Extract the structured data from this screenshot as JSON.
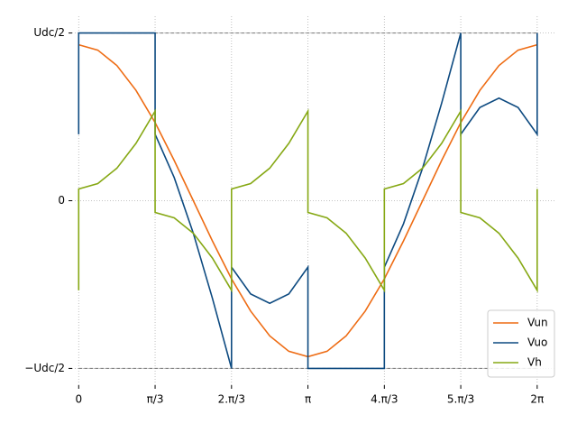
{
  "chart_data": {
    "type": "line",
    "x": [
      0,
      0,
      0.2618,
      0.5236,
      0.7854,
      1.0472,
      1.0472,
      1.309,
      1.5708,
      1.8326,
      2.0944,
      2.0944,
      2.3562,
      2.618,
      2.8798,
      3.1416,
      3.1416,
      3.4034,
      3.6652,
      3.927,
      4.1888,
      4.1888,
      4.4506,
      4.7124,
      4.9742,
      5.236,
      5.236,
      5.4978,
      5.7596,
      6.0214,
      6.2832,
      6.2832
    ],
    "series": [
      {
        "name": "Vun",
        "color": "#ee6c14",
        "values": [
          0.465,
          0.465,
          0.449,
          0.403,
          0.329,
          0.233,
          0.233,
          0.12,
          0,
          -0.12,
          -0.233,
          -0.233,
          -0.329,
          -0.403,
          -0.449,
          -0.465,
          -0.465,
          -0.449,
          -0.403,
          -0.329,
          -0.233,
          -0.233,
          -0.12,
          0,
          0.12,
          0.233,
          0.233,
          0.329,
          0.403,
          0.449,
          0.465,
          0.465
        ]
      },
      {
        "name": "Vuo",
        "color": "#0d4a80",
        "values": [
          0.198,
          0.5,
          0.5,
          0.5,
          0.5,
          0.5,
          0.198,
          0.069,
          -0.097,
          -0.291,
          -0.5,
          -0.198,
          -0.278,
          -0.306,
          -0.278,
          -0.198,
          -0.5,
          -0.5,
          -0.5,
          -0.5,
          -0.5,
          -0.198,
          -0.069,
          0.097,
          0.291,
          0.5,
          0.198,
          0.278,
          0.306,
          0.278,
          0.198,
          0.5
        ]
      },
      {
        "name": "Vh",
        "color": "#86a814",
        "values": [
          -0.267,
          0.035,
          0.051,
          0.097,
          0.171,
          0.267,
          -0.035,
          -0.051,
          -0.097,
          -0.171,
          -0.267,
          0.035,
          0.051,
          0.097,
          0.171,
          0.267,
          -0.035,
          -0.051,
          -0.097,
          -0.171,
          -0.267,
          0.035,
          0.051,
          0.097,
          0.171,
          0.267,
          -0.035,
          -0.051,
          -0.097,
          -0.171,
          -0.267,
          0.035
        ]
      }
    ],
    "xlim": [
      -0.09,
      6.52
    ],
    "xticks": [
      0,
      {
        "value": 1.0472,
        "label": "π/3"
      },
      {
        "value": 2.0944,
        "label": "2.π/3"
      },
      {
        "value": 3.1416,
        "label": "π"
      },
      {
        "value": 4.1888,
        "label": "4.π/3"
      },
      {
        "value": 5.236,
        "label": "5.π/3"
      },
      {
        "value": 6.2832,
        "label": "2π"
      }
    ],
    "ylim": [
      -0.55,
      0.55
    ],
    "yticks": [
      {
        "value": -0.5,
        "label": "−Udc/2"
      },
      0,
      {
        "value": 0.5,
        "label": "Udc/2"
      }
    ],
    "hlines": [
      -0.5,
      0.5
    ],
    "grid": true,
    "legend": "lower right"
  }
}
